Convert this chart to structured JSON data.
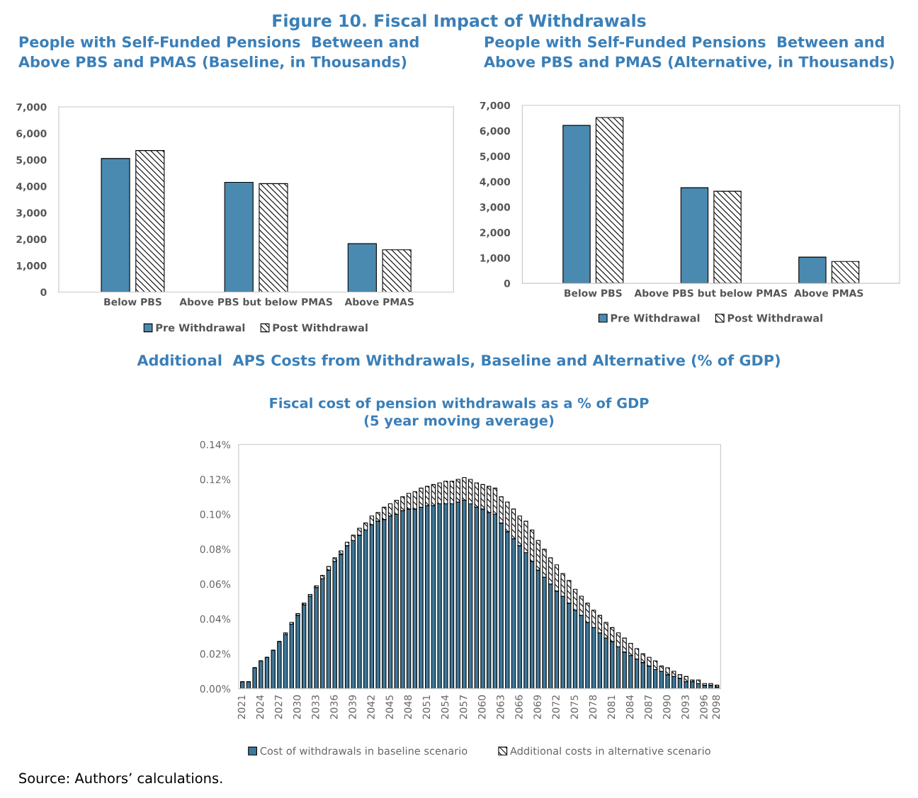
{
  "chart_data": [
    {
      "type": "bar",
      "title": "People with Self-Funded Pensions  Between and\nAbove PBS and PMAS (Baseline, in Thousands)",
      "annotations": [
        "Figure 10. Fiscal Impact of Withdrawals"
      ],
      "categories": [
        "Below PBS",
        "Above PBS but below PMAS",
        "Above PMAS"
      ],
      "series": [
        {
          "name": "Pre Withdrawal",
          "color": "#4a8ab0",
          "values": [
            5050,
            4150,
            1830
          ]
        },
        {
          "name": "Post Withdrawal",
          "color": "#000000",
          "values": [
            5350,
            4100,
            1600
          ]
        }
      ],
      "ylim": [
        0,
        7000
      ],
      "yticks": [
        {
          "value": 0,
          "label": "0"
        },
        {
          "value": 1000,
          "label": "1,000"
        },
        {
          "value": 2000,
          "label": "2,000"
        },
        {
          "value": 3000,
          "label": "3,000"
        },
        {
          "value": 4000,
          "label": "4,000"
        },
        {
          "value": 5000,
          "label": "5,000"
        },
        {
          "value": 6000,
          "label": "6,000"
        },
        {
          "value": 7000,
          "label": "7,000"
        }
      ],
      "grid": false,
      "legend": "bottom"
    },
    {
      "type": "bar",
      "title": "People with Self-Funded Pensions  Between and\nAbove PBS and PMAS (Alternative, in Thousands)",
      "categories": [
        "Below PBS",
        "Above PBS but below PMAS",
        "Above PMAS"
      ],
      "series": [
        {
          "name": "Pre Withdrawal",
          "color": "#4a8ab0",
          "values": [
            6210,
            3760,
            1030
          ]
        },
        {
          "name": "Post Withdrawal",
          "color": "#000000",
          "values": [
            6520,
            3620,
            860
          ]
        }
      ],
      "ylim": [
        0,
        7000
      ],
      "yticks": [
        {
          "value": 0,
          "label": "0"
        },
        {
          "value": 1000,
          "label": "1,000"
        },
        {
          "value": 2000,
          "label": "2,000"
        },
        {
          "value": 3000,
          "label": "3,000"
        },
        {
          "value": 4000,
          "label": "4,000"
        },
        {
          "value": 5000,
          "label": "5,000"
        },
        {
          "value": 6000,
          "label": "6,000"
        },
        {
          "value": 7000,
          "label": "7,000"
        }
      ],
      "grid": false,
      "legend": "bottom"
    },
    {
      "type": "bar",
      "stacked": true,
      "title": "Additional  APS Costs from Withdrawals, Baseline and Alternative (% of GDP)",
      "subtitle": "Fiscal cost of pension withdrawals as a % of GDP\n(5 year moving average)",
      "annotations": [
        "Source: Authors’ calculations."
      ],
      "categories": [
        "2021",
        null,
        null,
        "2024",
        null,
        null,
        "2027",
        null,
        null,
        "2030",
        null,
        null,
        "2033",
        null,
        null,
        "2036",
        null,
        null,
        "2039",
        null,
        null,
        "2042",
        null,
        null,
        "2045",
        null,
        null,
        "2048",
        null,
        null,
        "2051",
        null,
        null,
        "2054",
        null,
        null,
        "2057",
        null,
        null,
        "2060",
        null,
        null,
        "2063",
        null,
        null,
        "2066",
        null,
        null,
        "2069",
        null,
        null,
        "2072",
        null,
        null,
        "2075",
        null,
        null,
        "2078",
        null,
        null,
        "2081",
        null,
        null,
        "2084",
        null,
        null,
        "2087",
        null,
        null,
        "2090",
        null,
        null,
        "2093",
        null,
        null,
        "2096",
        null,
        "2098"
      ],
      "series": [
        {
          "name": "Cost of withdrawals in baseline scenario",
          "color": "#3f7a9c",
          "values": [
            0.004,
            0.004,
            0.012,
            0.016,
            0.018,
            0.022,
            0.027,
            0.031,
            0.037,
            0.042,
            0.048,
            0.053,
            0.058,
            0.063,
            0.068,
            0.073,
            0.077,
            0.082,
            0.085,
            0.088,
            0.091,
            0.094,
            0.096,
            0.097,
            0.099,
            0.1,
            0.102,
            0.103,
            0.103,
            0.104,
            0.105,
            0.105,
            0.106,
            0.106,
            0.106,
            0.107,
            0.108,
            0.106,
            0.104,
            0.103,
            0.101,
            0.1,
            0.095,
            0.09,
            0.086,
            0.082,
            0.078,
            0.073,
            0.068,
            0.064,
            0.06,
            0.056,
            0.053,
            0.049,
            0.045,
            0.042,
            0.038,
            0.035,
            0.032,
            0.029,
            0.027,
            0.024,
            0.021,
            0.019,
            0.017,
            0.015,
            0.013,
            0.011,
            0.01,
            0.008,
            0.007,
            0.006,
            0.004,
            0.004,
            0.003,
            0.002,
            0.002,
            0.001
          ]
        },
        {
          "name": "Additional costs in alternative scenario",
          "color": "#000000",
          "values": [
            0,
            0,
            0,
            0,
            0,
            0,
            0,
            0.001,
            0.001,
            0.001,
            0.001,
            0.001,
            0.001,
            0.002,
            0.002,
            0.002,
            0.002,
            0.002,
            0.003,
            0.004,
            0.004,
            0.005,
            0.005,
            0.007,
            0.007,
            0.008,
            0.008,
            0.009,
            0.01,
            0.011,
            0.011,
            0.012,
            0.012,
            0.013,
            0.013,
            0.013,
            0.013,
            0.014,
            0.014,
            0.014,
            0.015,
            0.015,
            0.015,
            0.017,
            0.017,
            0.017,
            0.018,
            0.018,
            0.017,
            0.016,
            0.015,
            0.015,
            0.013,
            0.013,
            0.012,
            0.011,
            0.011,
            0.01,
            0.01,
            0.009,
            0.008,
            0.008,
            0.008,
            0.007,
            0.006,
            0.005,
            0.005,
            0.005,
            0.003,
            0.004,
            0.003,
            0.002,
            0.003,
            0.001,
            0.002,
            0.001,
            0.001,
            0.001
          ]
        }
      ],
      "ylim": [
        0,
        0.14
      ],
      "yticks": [
        {
          "value": 0,
          "label": "0.00%"
        },
        {
          "value": 0.02,
          "label": "0.02%"
        },
        {
          "value": 0.04,
          "label": "0.04%"
        },
        {
          "value": 0.06,
          "label": "0.06%"
        },
        {
          "value": 0.08,
          "label": "0.08%"
        },
        {
          "value": 0.1,
          "label": "0.10%"
        },
        {
          "value": 0.12,
          "label": "0.12%"
        },
        {
          "value": 0.14,
          "label": "0.14%"
        }
      ],
      "grid": false,
      "legend": "bottom"
    }
  ]
}
